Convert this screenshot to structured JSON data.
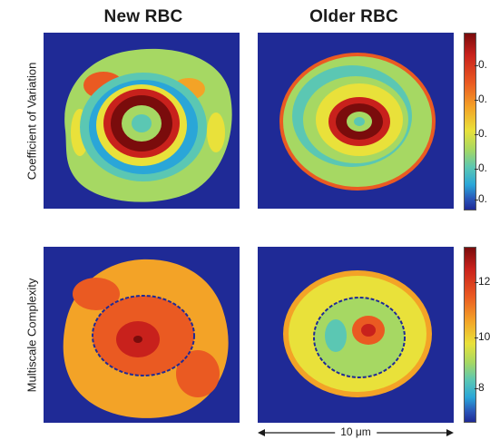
{
  "columns": {
    "left": "New RBC",
    "right": "Older RBC"
  },
  "rows": {
    "top": "Coefficient of Variation",
    "bottom": "Multiscale Complexity"
  },
  "colorbar_top": {
    "ticks": [
      "0.",
      "0.",
      "0.",
      "0.",
      "0."
    ]
  },
  "colorbar_bottom": {
    "ticks": [
      "12",
      "10",
      "8"
    ]
  },
  "scale_bar": {
    "label": "10 μm"
  },
  "colors": {
    "background": "#1f2a96",
    "dark_red": "#7a0c0c",
    "red": "#c8211c",
    "orange": "#ea5a22",
    "yellow": "#e9e13a",
    "green": "#a6d863",
    "cyan": "#5bc7b3",
    "light_blue": "#2aa6d8"
  }
}
